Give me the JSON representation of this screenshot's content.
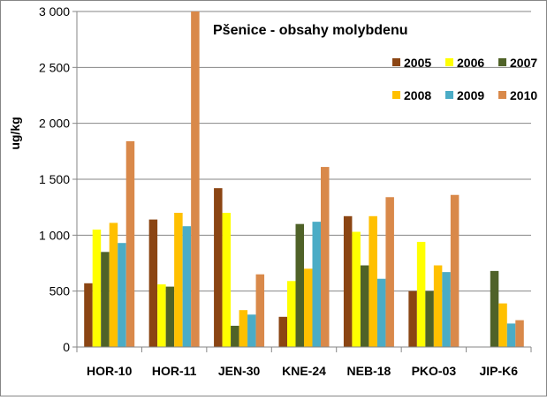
{
  "chart_data": {
    "type": "bar",
    "title": "Pšenice - obsahy molybdenu",
    "ylabel": "ug/kg",
    "xlabel": "",
    "ylim": [
      0,
      3000
    ],
    "ytick_values": [
      0,
      500,
      1000,
      1500,
      2000,
      2500,
      3000
    ],
    "ytick_labels": [
      "0",
      "500",
      "1 000",
      "1 500",
      "2 000",
      "2 500",
      "3 000"
    ],
    "grid": "horizontal",
    "legend_position": "top-right",
    "categories": [
      "HOR-10",
      "HOR-11",
      "JEN-30",
      "KNE-24",
      "NEB-18",
      "PKO-03",
      "JIP-K6"
    ],
    "series": [
      {
        "name": "2005",
        "color": "#8B4513",
        "values": [
          570,
          1140,
          1420,
          270,
          1170,
          500,
          null
        ]
      },
      {
        "name": "2006",
        "color": "#FFFF00",
        "values": [
          1050,
          560,
          1200,
          590,
          1030,
          940,
          null
        ]
      },
      {
        "name": "2007",
        "color": "#4F6228",
        "values": [
          850,
          540,
          190,
          1100,
          730,
          500,
          680
        ]
      },
      {
        "name": "2008",
        "color": "#FFC000",
        "values": [
          1110,
          1200,
          330,
          700,
          1170,
          730,
          390
        ]
      },
      {
        "name": "2009",
        "color": "#4BACC6",
        "values": [
          930,
          1080,
          290,
          1120,
          610,
          670,
          210
        ]
      },
      {
        "name": "2010",
        "color": "#D9894A",
        "values": [
          1840,
          3000,
          650,
          1610,
          1340,
          1360,
          240
        ]
      }
    ]
  }
}
